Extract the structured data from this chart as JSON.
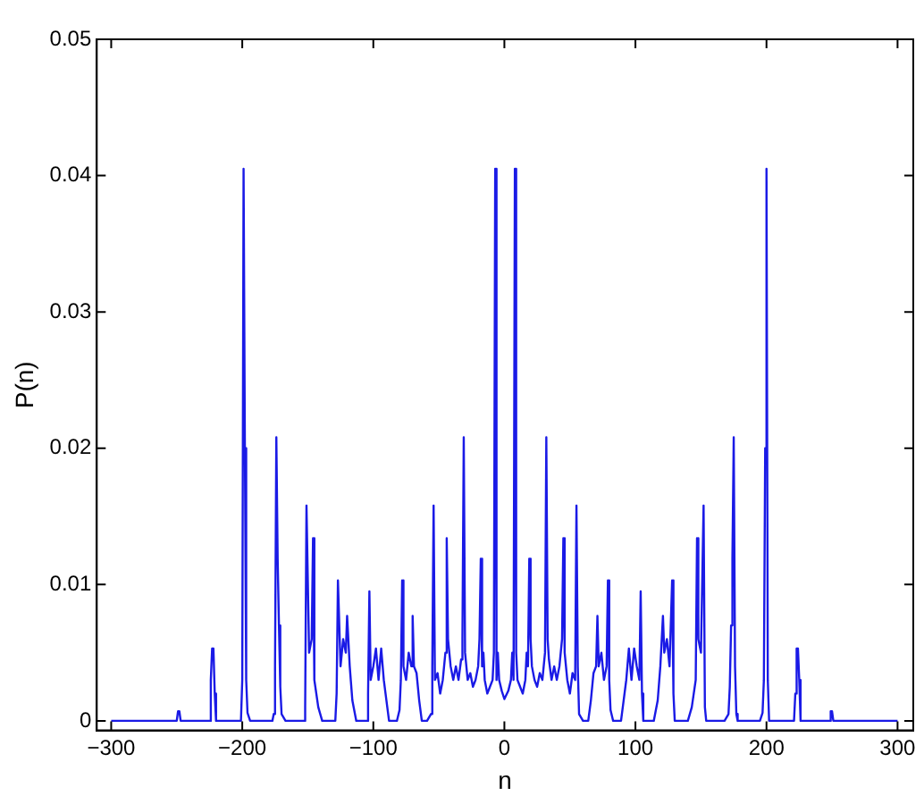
{
  "chart_data": {
    "type": "line",
    "xlabel": "n",
    "ylabel": "P(n)",
    "xlim": [
      -311,
      312
    ],
    "ylim": [
      -0.0007,
      0.05
    ],
    "xticks": [
      {
        "value": -300,
        "label": "−300"
      },
      {
        "value": -200,
        "label": "−200"
      },
      {
        "value": -100,
        "label": "−100"
      },
      0,
      100,
      200,
      300
    ],
    "yticks": [
      0,
      0.01,
      0.02,
      0.03,
      0.04,
      0.05
    ],
    "x": [
      -300,
      -250,
      -249,
      -248,
      -247,
      -225,
      -224,
      -223,
      -222,
      -221,
      -220,
      -201,
      -200,
      -199,
      -198,
      -197,
      -196,
      -194,
      -177,
      -176,
      -175,
      -174,
      -173,
      -172,
      -171,
      -170,
      -167,
      -153,
      -152,
      -151,
      -149,
      -147,
      -146,
      -145,
      -142,
      -139,
      -129,
      -128,
      -127,
      -125,
      -123,
      -121,
      -120,
      -118,
      -116,
      -113,
      -105,
      -104,
      -103,
      -102,
      -100,
      -98,
      -96,
      -94,
      -92,
      -90,
      -88,
      -82,
      -80,
      -79,
      -78,
      -77,
      -75,
      -73,
      -71,
      -70,
      -69,
      -67,
      -65,
      -63,
      -59,
      -56,
      -55,
      -54,
      -53,
      -51,
      -49,
      -47,
      -45,
      -44,
      -43,
      -41,
      -39,
      -37,
      -35,
      -33,
      -32,
      -31,
      -30,
      -28,
      -26,
      -24,
      -22,
      -20,
      -19,
      -18,
      -17,
      -16,
      -15,
      -13,
      -11,
      -9,
      -8,
      -7,
      -6,
      -5,
      -4,
      -2,
      0,
      1,
      3,
      5,
      6,
      7,
      8,
      9,
      10,
      12,
      14,
      16,
      17,
      18,
      19,
      20,
      21,
      23,
      25,
      27,
      29,
      31,
      32,
      33,
      34,
      36,
      38,
      40,
      42,
      44,
      45,
      46,
      48,
      50,
      52,
      54,
      55,
      56,
      57,
      60,
      64,
      66,
      68,
      70,
      71,
      72,
      74,
      76,
      78,
      79,
      80,
      81,
      83,
      89,
      91,
      93,
      95,
      97,
      99,
      101,
      103,
      104,
      105,
      106,
      114,
      117,
      119,
      121,
      122,
      124,
      126,
      128,
      129,
      130,
      140,
      143,
      146,
      147,
      148,
      150,
      152,
      153,
      154,
      168,
      171,
      172,
      173,
      174,
      175,
      176,
      177,
      178,
      195,
      197,
      198,
      199,
      200,
      201,
      202,
      221,
      222,
      223,
      224,
      225,
      226,
      248,
      249,
      250,
      251,
      300
    ],
    "series": [
      {
        "color": "#1a1ae6",
        "values": [
          0,
          0,
          0.0007,
          0.0007,
          0,
          0,
          0.003,
          0.0053,
          0.0053,
          0.002,
          0,
          0,
          0.003,
          0.0405,
          0.02,
          0.003,
          0.0006,
          0,
          0,
          0.0005,
          0.004,
          0.0208,
          0.0119,
          0.007,
          0.0025,
          0.0005,
          0,
          0,
          0.001,
          0.0158,
          0.005,
          0.006,
          0.0134,
          0.003,
          0.001,
          0,
          0,
          0.002,
          0.0103,
          0.004,
          0.006,
          0.005,
          0.0077,
          0.004,
          0.0015,
          0,
          0,
          0.002,
          0.0095,
          0.003,
          0.004,
          0.0053,
          0.003,
          0.0053,
          0.003,
          0.0015,
          0,
          0,
          0.0008,
          0.003,
          0.0103,
          0.004,
          0.003,
          0.005,
          0.004,
          0.0077,
          0.004,
          0.0035,
          0.0015,
          0,
          0,
          0.0005,
          0.004,
          0.0158,
          0.003,
          0.0035,
          0.002,
          0.003,
          0.005,
          0.0134,
          0.006,
          0.004,
          0.003,
          0.004,
          0.003,
          0.0045,
          0.006,
          0.0208,
          0.005,
          0.003,
          0.0035,
          0.0025,
          0.003,
          0.004,
          0.006,
          0.0119,
          0.004,
          0.005,
          0.003,
          0.002,
          0.0025,
          0.003,
          0.005,
          0.0405,
          0.003,
          0.005,
          0.003,
          0.0022,
          0.0016,
          0.0016,
          0.0022,
          0.003,
          0.005,
          0.003,
          0.0405,
          0.005,
          0.003,
          0.0025,
          0.002,
          0.003,
          0.005,
          0.004,
          0.0119,
          0.006,
          0.004,
          0.003,
          0.0025,
          0.0035,
          0.003,
          0.005,
          0.0208,
          0.006,
          0.0045,
          0.003,
          0.004,
          0.003,
          0.004,
          0.006,
          0.0134,
          0.005,
          0.003,
          0.002,
          0.0035,
          0.003,
          0.0158,
          0.004,
          0.0005,
          0,
          0,
          0.0015,
          0.0035,
          0.004,
          0.0077,
          0.004,
          0.005,
          0.003,
          0.004,
          0.0103,
          0.003,
          0.0008,
          0,
          0,
          0.0015,
          0.003,
          0.0053,
          0.003,
          0.0053,
          0.004,
          0.003,
          0.0095,
          0.002,
          0,
          0,
          0.0015,
          0.004,
          0.0077,
          0.005,
          0.006,
          0.004,
          0.0103,
          0.002,
          0,
          0,
          0.001,
          0.003,
          0.0134,
          0.006,
          0.005,
          0.0158,
          0.001,
          0,
          0,
          0.0005,
          0.0025,
          0.007,
          0.0119,
          0.0208,
          0.004,
          0.0005,
          0,
          0,
          0.0006,
          0.003,
          0.02,
          0.0405,
          0.003,
          0,
          0,
          0.002,
          0.0053,
          0.0053,
          0.003,
          0,
          0,
          0.0007,
          0.0007,
          0,
          0
        ]
      }
    ]
  }
}
